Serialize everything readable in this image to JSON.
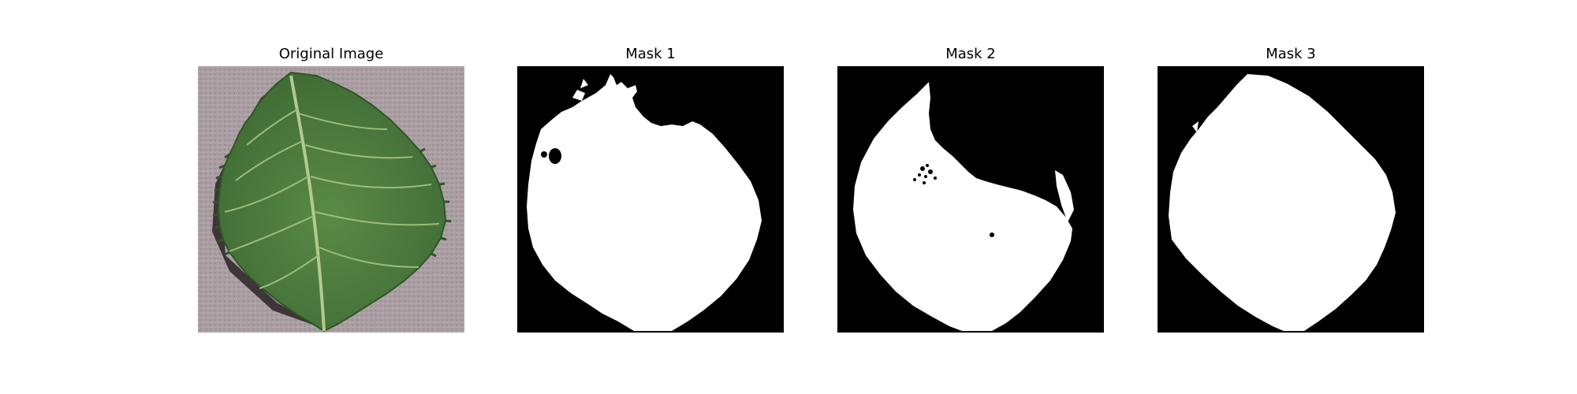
{
  "figure": {
    "panels": [
      {
        "title": "Original Image",
        "kind": "photo"
      },
      {
        "title": "Mask 1",
        "kind": "mask"
      },
      {
        "title": "Mask 2",
        "kind": "mask"
      },
      {
        "title": "Mask 3",
        "kind": "mask"
      }
    ]
  },
  "colors": {
    "background": "#ffffff",
    "mask_bg": "#000000",
    "mask_fg": "#ffffff",
    "leaf_green": "#4f7f3e",
    "table_grey": "#a89ca0"
  }
}
